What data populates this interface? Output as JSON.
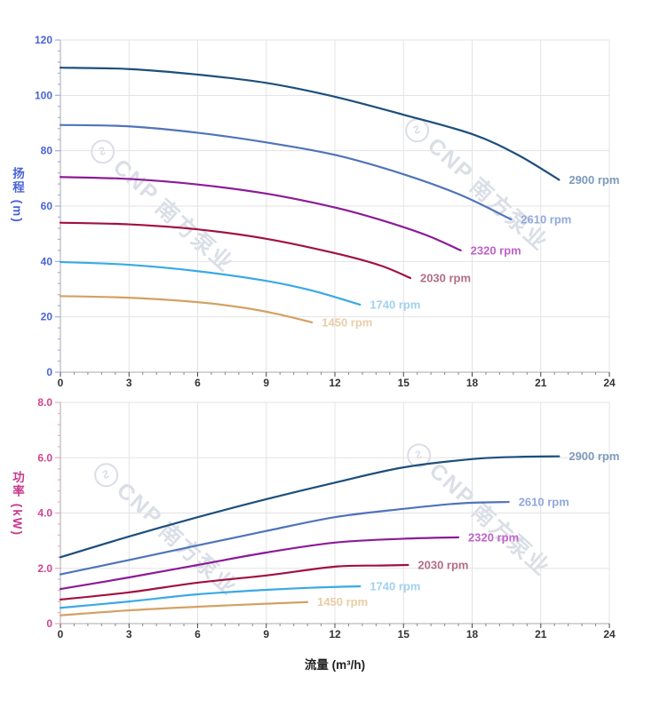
{
  "page": {
    "background": "#ffffff"
  },
  "watermark": {
    "logo_glyph": "∿",
    "brand": "CNP",
    "brand_cn": "南方泵业"
  },
  "charts_common": {
    "xlabel": "流量 (m³/h)",
    "xlim": [
      0,
      24
    ],
    "x_major_ticks": [
      0,
      3,
      6,
      9,
      12,
      15,
      18,
      21,
      24
    ],
    "x_tick_labels": [
      "0",
      "3",
      "6",
      "9",
      "12",
      "15",
      "18",
      "21",
      "24"
    ],
    "x_minor_step": 0.6,
    "x_tick_label_color": "#333333",
    "grid_color": "#e3e3e4",
    "axis_line_color": "#a8a8a8"
  },
  "chart_data": [
    {
      "type": "line",
      "name": "head-vs-flow",
      "ylabel": "扬程 (m)",
      "xlabel": "",
      "ylim": [
        0,
        120
      ],
      "y_major_ticks": [
        0,
        20,
        40,
        60,
        80,
        100,
        120
      ],
      "y_tick_labels": [
        "0",
        "20",
        "40",
        "60",
        "80",
        "100",
        "120"
      ],
      "y_minor_step": 4,
      "axis_text_color": "#4a63d6",
      "tick_color": "#a3b2ee",
      "grid": true,
      "legend_position": "curve-end",
      "series": [
        {
          "name": "2900 rpm",
          "color": "#1d4f7c",
          "label_color": "#7d9bbc",
          "points": [
            [
              0,
              110
            ],
            [
              3,
              109.5
            ],
            [
              6,
              107.5
            ],
            [
              9,
              104.5
            ],
            [
              12,
              99.5
            ],
            [
              15,
              93
            ],
            [
              18,
              86
            ],
            [
              20,
              78.5
            ],
            [
              21.8,
              69.5
            ]
          ]
        },
        {
          "name": "2610 rpm",
          "color": "#4f74ba",
          "label_color": "#92a9dc",
          "points": [
            [
              0,
              89.3
            ],
            [
              3,
              88.8
            ],
            [
              6,
              86.5
            ],
            [
              9,
              83
            ],
            [
              12,
              78.5
            ],
            [
              15,
              71.5
            ],
            [
              17.5,
              64
            ],
            [
              19.7,
              55.2
            ]
          ]
        },
        {
          "name": "2320 rpm",
          "color": "#8c1b98",
          "label_color": "#bd63c8",
          "points": [
            [
              0,
              70.5
            ],
            [
              3,
              69.8
            ],
            [
              6,
              67.8
            ],
            [
              9,
              64.5
            ],
            [
              12,
              59.5
            ],
            [
              14,
              55
            ],
            [
              16,
              49.5
            ],
            [
              17.5,
              44
            ]
          ]
        },
        {
          "name": "2030 rpm",
          "color": "#a01240",
          "label_color": "#b26e84",
          "points": [
            [
              0,
              54
            ],
            [
              3,
              53.4
            ],
            [
              6,
              51.6
            ],
            [
              9,
              48.2
            ],
            [
              12,
              43
            ],
            [
              14,
              38.5
            ],
            [
              15.3,
              34
            ]
          ]
        },
        {
          "name": "1740 rpm",
          "color": "#3aa9e4",
          "label_color": "#9fd2f0",
          "points": [
            [
              0,
              39.8
            ],
            [
              3,
              38.8
            ],
            [
              6,
              36.5
            ],
            [
              9,
              33
            ],
            [
              11,
              29.5
            ],
            [
              13.1,
              24.4
            ]
          ]
        },
        {
          "name": "1450 rpm",
          "color": "#d4a164",
          "label_color": "#e8cda6",
          "points": [
            [
              0,
              27.5
            ],
            [
              3,
              26.9
            ],
            [
              6,
              25.3
            ],
            [
              8,
              23.3
            ],
            [
              9.5,
              21
            ],
            [
              11,
              18
            ]
          ]
        }
      ]
    },
    {
      "type": "line",
      "name": "power-vs-flow",
      "ylabel": "功率 (kW)",
      "xlabel": "流量 (m³/h)",
      "ylim": [
        0,
        8
      ],
      "y_major_ticks": [
        0,
        2,
        4,
        6,
        8
      ],
      "y_tick_labels": [
        "0",
        "2.0",
        "4.0",
        "6.0",
        "8.0"
      ],
      "y_minor_step": 0.4,
      "axis_text_color": "#cf4390",
      "tick_color": "#f0a9cb",
      "grid": true,
      "legend_position": "curve-end",
      "series": [
        {
          "name": "2900 rpm",
          "color": "#1d4f7c",
          "label_color": "#7d9bbc",
          "points": [
            [
              0,
              2.4
            ],
            [
              3,
              3.15
            ],
            [
              6,
              3.85
            ],
            [
              9,
              4.5
            ],
            [
              12,
              5.1
            ],
            [
              15,
              5.65
            ],
            [
              18,
              5.95
            ],
            [
              20,
              6.03
            ],
            [
              21.8,
              6.05
            ]
          ]
        },
        {
          "name": "2610 rpm",
          "color": "#4f74ba",
          "label_color": "#92a9dc",
          "points": [
            [
              0,
              1.78
            ],
            [
              3,
              2.3
            ],
            [
              6,
              2.83
            ],
            [
              9,
              3.35
            ],
            [
              12,
              3.85
            ],
            [
              15,
              4.15
            ],
            [
              17.5,
              4.35
            ],
            [
              19.6,
              4.4
            ]
          ]
        },
        {
          "name": "2320 rpm",
          "color": "#8c1b98",
          "label_color": "#bd63c8",
          "points": [
            [
              0,
              1.25
            ],
            [
              3,
              1.67
            ],
            [
              6,
              2.12
            ],
            [
              9,
              2.57
            ],
            [
              12,
              2.93
            ],
            [
              15,
              3.07
            ],
            [
              17.4,
              3.12
            ]
          ]
        },
        {
          "name": "2030 rpm",
          "color": "#a01240",
          "label_color": "#b26e84",
          "points": [
            [
              0,
              0.87
            ],
            [
              3,
              1.13
            ],
            [
              6,
              1.48
            ],
            [
              9,
              1.74
            ],
            [
              12,
              2.06
            ],
            [
              14,
              2.1
            ],
            [
              15.2,
              2.12
            ]
          ]
        },
        {
          "name": "1740 rpm",
          "color": "#3aa9e4",
          "label_color": "#9fd2f0",
          "points": [
            [
              0,
              0.57
            ],
            [
              3,
              0.8
            ],
            [
              6,
              1.06
            ],
            [
              9,
              1.22
            ],
            [
              11,
              1.3
            ],
            [
              13.1,
              1.35
            ]
          ]
        },
        {
          "name": "1450 rpm",
          "color": "#d4a164",
          "label_color": "#e8cda6",
          "points": [
            [
              0,
              0.3
            ],
            [
              3,
              0.48
            ],
            [
              6,
              0.61
            ],
            [
              9,
              0.72
            ],
            [
              10.8,
              0.78
            ]
          ]
        }
      ]
    }
  ]
}
